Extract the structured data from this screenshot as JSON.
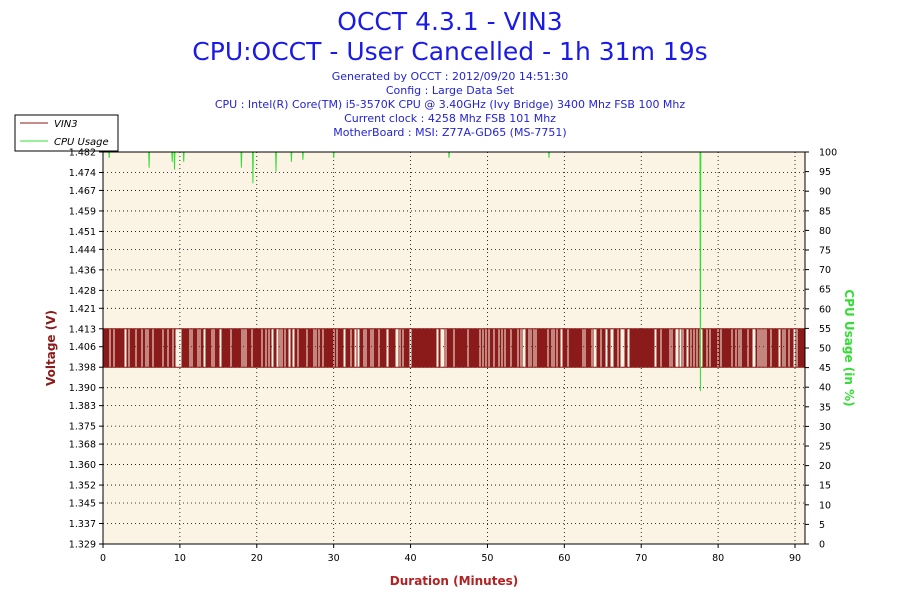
{
  "header": {
    "title": "OCCT 4.3.1 - VIN3",
    "subtitle": "CPU:OCCT - User Cancelled - 1h 31m 19s",
    "meta_lines": [
      "Generated by OCCT : 2012/09/20 14:51:30",
      "Config : Large Data Set",
      "CPU : Intel(R) Core(TM) i5-3570K CPU @ 3.40GHz (Ivy Bridge) 3400 Mhz FSB 100 Mhz",
      "Current clock : 4258 Mhz FSB 101 Mhz",
      "MotherBoard : MSI: Z77A-GD65 (MS-7751)"
    ]
  },
  "colors": {
    "voltage": "#8b1a1a",
    "cpu": "#33dd33",
    "plot_bg": "#fbf3e4",
    "title": "#1a1ae6",
    "xlabel": "#b22222"
  },
  "chart_data": {
    "type": "line",
    "xlabel": "Duration (Minutes)",
    "ylabel": "Voltage (V)",
    "y2label": "CPU Usage (in %)",
    "xlim": [
      0,
      91.3
    ],
    "ylim": [
      1.329,
      1.482
    ],
    "y2lim": [
      0,
      100
    ],
    "x_ticks": [
      0,
      10,
      20,
      30,
      40,
      50,
      60,
      70,
      80,
      90
    ],
    "y_ticks": [
      "1.329",
      "1.337",
      "1.345",
      "1.352",
      "1.360",
      "1.368",
      "1.375",
      "1.383",
      "1.390",
      "1.398",
      "1.406",
      "1.413",
      "1.421",
      "1.428",
      "1.436",
      "1.444",
      "1.451",
      "1.459",
      "1.467",
      "1.474",
      "1.482"
    ],
    "y2_ticks": [
      0,
      5,
      10,
      15,
      20,
      25,
      30,
      35,
      40,
      45,
      50,
      55,
      60,
      65,
      70,
      75,
      80,
      85,
      90,
      95,
      100
    ],
    "grid": true,
    "legend_position": "top-left",
    "series": [
      {
        "name": "VIN3",
        "axis": "left",
        "summary": "oscillates between 1.398 and 1.413 V for the whole run",
        "low": 1.398,
        "high": 1.413,
        "x_start": 0,
        "x_end": 91.3
      },
      {
        "name": "CPU Usage",
        "axis": "right",
        "summary": "about 100% for the whole run with brief dips",
        "base": 100,
        "dips": [
          {
            "x": 0.8,
            "y": 98.5
          },
          {
            "x": 6,
            "y": 96
          },
          {
            "x": 9,
            "y": 97.5
          },
          {
            "x": 9.3,
            "y": 95.5
          },
          {
            "x": 10.5,
            "y": 97.5
          },
          {
            "x": 18,
            "y": 96
          },
          {
            "x": 19.5,
            "y": 92
          },
          {
            "x": 22.5,
            "y": 95
          },
          {
            "x": 24.5,
            "y": 97.5
          },
          {
            "x": 26,
            "y": 98
          },
          {
            "x": 30,
            "y": 98.5
          },
          {
            "x": 45,
            "y": 98.5
          },
          {
            "x": 58,
            "y": 98.5
          },
          {
            "x": 77.7,
            "y": 39
          }
        ]
      }
    ]
  }
}
